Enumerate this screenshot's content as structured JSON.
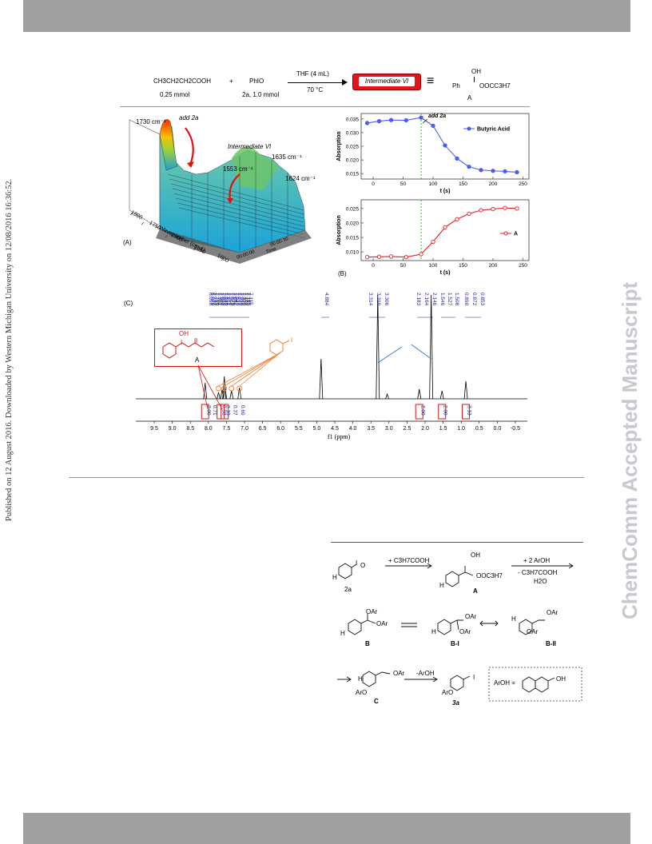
{
  "side_note": "Published on 12 August 2016. Downloaded by Western Michigan University on 12/08/2016 16:36:52.",
  "watermark": "ChemComm Accepted Manuscript",
  "reaction": {
    "reactant1": "CH3CH2CH2COOH",
    "reactant1_amount": "0.25 mmol",
    "plus": "+",
    "reactant2": "PhIO",
    "reactant2_amount": "2a, 1.0 mmol",
    "condition_top": "THF (4 mL)",
    "condition_bottom": "70 °C",
    "box_label": "Intermediate VI",
    "equiv": "≡",
    "product_oh": "OH",
    "product_ph": "Ph",
    "product_group": "OOCC3H7",
    "product_label": "A"
  },
  "panelA": {
    "label": "(A)",
    "peak1": "1730 cm⁻¹",
    "add": "add 2a",
    "intermediate": "Intermediate VI",
    "peak2": "1635 cm⁻¹",
    "peak3": "1553 cm⁻¹",
    "peak4": "1624 cm⁻¹",
    "wavenumber_axis_title": "Wavenumber (cm-1)",
    "wavenumber_ticks": [
      "1800",
      "1750",
      "1700",
      "1650",
      "1600"
    ],
    "time_axis_title": "Time",
    "time_ticks": [
      "00:00:30",
      "00:00:00"
    ]
  },
  "panelB": {
    "label": "(B)",
    "add": "add 2a",
    "legend_top": "Butyric Acid",
    "legend_bottom": "A",
    "ylabel": "Absorption",
    "xlabel": "t (s)",
    "top_yticks": [
      "0.035",
      "0.030",
      "0.025",
      "0.020",
      "0.015"
    ],
    "bottom_yticks": [
      "0.025",
      "0.020",
      "0.015",
      "0.010"
    ],
    "xticks": [
      "0",
      "50",
      "100",
      "150",
      "200",
      "250"
    ]
  },
  "panelC": {
    "label": "(C)",
    "peak_labels": [
      "8.098",
      "8.079",
      "7.722",
      "7.719",
      "7.706",
      "7.701",
      "7.699",
      "7.635",
      "7.623",
      "7.616",
      "7.611",
      "7.598",
      "7.575",
      "7.556",
      "7.542",
      "7.538",
      "7.377",
      "7.358",
      "7.339",
      "7.154",
      "7.150",
      "7.135",
      "7.115",
      "4.884",
      "3.314",
      "3.310",
      "3.306",
      "2.183",
      "2.164",
      "2.146",
      "1.546",
      "1.527",
      "1.508",
      "0.890",
      "0.872",
      "0.853"
    ],
    "integrals": [
      "2.09",
      "0.71",
      "0.98",
      "2.10",
      "0.37",
      "0.69",
      "2.00",
      "2.00",
      "3.13"
    ],
    "xticks": [
      "9.5",
      "9.0",
      "8.5",
      "8.0",
      "7.5",
      "7.0",
      "6.5",
      "6.0",
      "5.5",
      "5.0",
      "4.5",
      "4.0",
      "3.5",
      "3.0",
      "2.5",
      "2.0",
      "1.5",
      "1.0",
      "0.5",
      "0.0",
      "-0.5"
    ],
    "xlabel": "f1 (ppm)",
    "struct_label": "A",
    "struct_oh": "OH",
    "struct_i": "I",
    "iodo_label": "I"
  },
  "scheme": {
    "s2a": "2a",
    "arrow1": "+ C3H7COOH",
    "A": "A",
    "A_oh": "OH",
    "A_group": "OOC3H7",
    "arrow2_top": "+ 2 ArOH",
    "arrow2_mid": "- C3H7COOH",
    "arrow2_bot": "H2O",
    "B": "B",
    "BI": "B-I",
    "BII": "B-II",
    "OAr": "OAr",
    "C": "C",
    "arrow3": "-ArOH",
    "s3a": "3a",
    "ArOH_def": "ArOH =",
    "H": "H",
    "I": "I",
    "O": "O",
    "OH": "OH",
    "ArO": "ArO"
  },
  "chart_data": [
    {
      "type": "line",
      "xlabel": "t (s)",
      "ylabel": "Absorption",
      "xlim": [
        -20,
        260
      ],
      "ylim": [
        0.013,
        0.037
      ],
      "series": [
        {
          "name": "Butyric Acid",
          "x": [
            -10,
            10,
            30,
            55,
            80,
            100,
            120,
            140,
            160,
            180,
            200,
            220,
            240
          ],
          "values": [
            0.0335,
            0.0342,
            0.0346,
            0.0345,
            0.0355,
            0.0325,
            0.0253,
            0.0205,
            0.0175,
            0.0163,
            0.016,
            0.0158,
            0.0155
          ]
        }
      ]
    },
    {
      "type": "line",
      "xlabel": "t (s)",
      "ylabel": "Absorption",
      "xlim": [
        -20,
        260
      ],
      "ylim": [
        0.007,
        0.028
      ],
      "series": [
        {
          "name": "A",
          "x": [
            -10,
            10,
            30,
            55,
            80,
            100,
            120,
            140,
            160,
            180,
            200,
            220,
            240
          ],
          "values": [
            0.0082,
            0.0083,
            0.0084,
            0.0082,
            0.0092,
            0.0135,
            0.0185,
            0.0213,
            0.0232,
            0.0244,
            0.0248,
            0.0252,
            0.025
          ]
        }
      ]
    }
  ]
}
